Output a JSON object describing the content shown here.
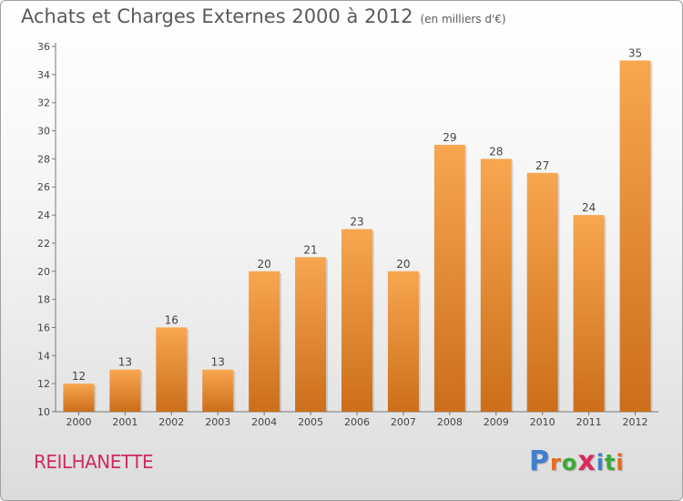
{
  "header": {
    "title": "Achats et Charges Externes 2000 à 2012",
    "unit": "(en milliers d'€)"
  },
  "commune": "REILHANETTE",
  "logo": {
    "text": "Proxiti",
    "letter_colors": [
      "#3f7fd0",
      "#e86b1c",
      "#3aaa35",
      "#d92b5a",
      "#3f7fd0",
      "#3aaa35",
      "#e86b1c"
    ]
  },
  "colors": {
    "bar_top": "#f8a650",
    "bar_bottom": "#cc6e1a",
    "axis": "#777777",
    "text": "#444444"
  },
  "chart_data": {
    "type": "bar",
    "categories": [
      "2000",
      "2001",
      "2002",
      "2003",
      "2004",
      "2005",
      "2006",
      "2007",
      "2008",
      "2009",
      "2010",
      "2011",
      "2012"
    ],
    "values": [
      12,
      13,
      16,
      13,
      20,
      21,
      23,
      20,
      29,
      28,
      27,
      24,
      35
    ],
    "title": "Achats et Charges Externes 2000 à 2012",
    "ylim": [
      10,
      36
    ],
    "yticks": [
      10,
      12,
      14,
      16,
      18,
      20,
      22,
      24,
      26,
      28,
      30,
      32,
      34,
      36
    ],
    "grid": false,
    "data_labels": true
  }
}
